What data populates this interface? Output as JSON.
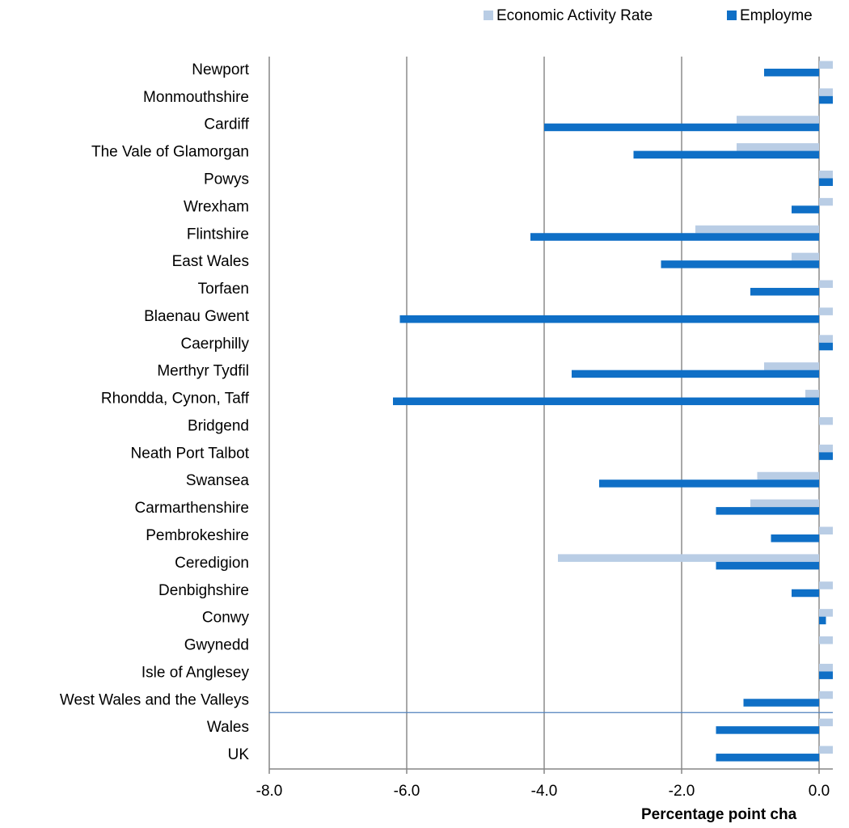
{
  "chart_data": {
    "type": "hbar",
    "x_label": "Percentage point cha",
    "categories": [
      "Newport",
      "Monmouthshire",
      "Cardiff",
      "The Vale of Glamorgan",
      "Powys",
      "Wrexham",
      "Flintshire",
      "East Wales",
      "Torfaen",
      "Blaenau Gwent",
      "Caerphilly",
      "Merthyr Tydfil",
      "Rhondda, Cynon, Taff",
      "Bridgend",
      "Neath Port Talbot",
      "Swansea",
      "Carmarthenshire",
      "Pembrokeshire",
      "Ceredigion",
      "Denbighshire",
      "Conwy",
      "Gwynedd",
      "Isle of Anglesey",
      "West Wales and the Valleys",
      "Wales",
      "UK"
    ],
    "series": [
      {
        "name": "Economic Activity Rate",
        "color": "#b9cde5",
        "values": [
          0.5,
          0.5,
          -1.2,
          -1.2,
          0.5,
          0.5,
          -1.8,
          -0.4,
          0.5,
          0.5,
          0.5,
          -0.8,
          -0.2,
          0.5,
          0.5,
          -0.9,
          -1.0,
          0.5,
          -3.8,
          0.5,
          0.5,
          0.5,
          0.5,
          0.5,
          0.5,
          0.5
        ]
      },
      {
        "name": "Employme",
        "color": "#0f6fc6",
        "values": [
          -0.8,
          0.5,
          -4.0,
          -2.7,
          0.5,
          -0.4,
          -4.2,
          -2.3,
          -1.0,
          -6.1,
          0.5,
          -3.6,
          -6.2,
          0,
          0.5,
          -3.2,
          -1.5,
          -0.7,
          -1.5,
          -0.4,
          0.1,
          0,
          0.5,
          -1.1,
          -1.5,
          -1.5
        ]
      }
    ],
    "xlim": [
      -8,
      2
    ],
    "xticks": [
      {
        "value": -8,
        "label": "-8.0"
      },
      {
        "value": -6,
        "label": "-6.0"
      },
      {
        "value": -4,
        "label": "-4.0"
      },
      {
        "value": -2,
        "label": "-2.0"
      },
      {
        "value": 0,
        "label": "0.0"
      }
    ],
    "grid": true,
    "legend": "top"
  }
}
